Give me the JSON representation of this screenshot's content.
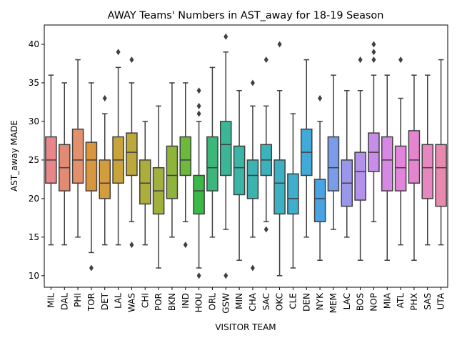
{
  "chart_data": {
    "type": "box",
    "title": "AWAY Teams' Numbers in AST_away for 18-19 Season",
    "xlabel": "VISITOR TEAM",
    "ylabel": "AST_away MADE",
    "ylim": [
      8.5,
      42.5
    ],
    "yticks": [
      10,
      15,
      20,
      25,
      30,
      35,
      40
    ],
    "grid": false,
    "boxes": [
      {
        "team": "MIL",
        "color": "#e8868c",
        "min": 14,
        "q1": 22,
        "median": 25,
        "q3": 28,
        "max": 36,
        "outliers": []
      },
      {
        "team": "DAL",
        "color": "#e38a73",
        "min": 14,
        "q1": 21,
        "median": 24,
        "q3": 27,
        "max": 35,
        "outliers": []
      },
      {
        "team": "PHI",
        "color": "#e3906d",
        "min": 15,
        "q1": 22,
        "median": 25,
        "q3": 29,
        "max": 38,
        "outliers": []
      },
      {
        "team": "TOR",
        "color": "#d9963c",
        "min": 13,
        "q1": 21,
        "median": 25,
        "q3": 27.3,
        "max": 35,
        "outliers": [
          11
        ]
      },
      {
        "team": "DET",
        "color": "#d59c3c",
        "min": 14,
        "q1": 20,
        "median": 22,
        "q3": 25,
        "max": 31,
        "outliers": [
          33
        ]
      },
      {
        "team": "LAL",
        "color": "#c9a33c",
        "min": 14,
        "q1": 22,
        "median": 25,
        "q3": 28,
        "max": 37,
        "outliers": [
          39
        ]
      },
      {
        "team": "WAS",
        "color": "#bca83b",
        "min": 17,
        "q1": 23,
        "median": 26,
        "q3": 28.5,
        "max": 35,
        "outliers": [
          14,
          38
        ]
      },
      {
        "team": "CHI",
        "color": "#adad3b",
        "min": 14,
        "q1": 19.3,
        "median": 22,
        "q3": 25,
        "max": 30,
        "outliers": []
      },
      {
        "team": "POR",
        "color": "#a2b13b",
        "min": 11,
        "q1": 18,
        "median": 21,
        "q3": 24,
        "max": 32,
        "outliers": []
      },
      {
        "team": "BKN",
        "color": "#8eb43b",
        "min": 15,
        "q1": 20,
        "median": 23,
        "q3": 26.8,
        "max": 35,
        "outliers": []
      },
      {
        "team": "IND",
        "color": "#6db93b",
        "min": 17,
        "q1": 23,
        "median": 25,
        "q3": 28,
        "max": 35,
        "outliers": [
          14
        ]
      },
      {
        "team": "HOU",
        "color": "#3bb848",
        "min": 11,
        "q1": 18,
        "median": 21,
        "q3": 23,
        "max": 30,
        "outliers": [
          10,
          31,
          32,
          34
        ]
      },
      {
        "team": "ORL",
        "color": "#3bb77c",
        "min": 15,
        "q1": 21,
        "median": 24,
        "q3": 28,
        "max": 37,
        "outliers": []
      },
      {
        "team": "GSW",
        "color": "#3bb797",
        "min": 16,
        "q1": 23,
        "median": 27,
        "q3": 30,
        "max": 39,
        "outliers": [
          10,
          41
        ]
      },
      {
        "team": "MIN",
        "color": "#3bb5a5",
        "min": 12,
        "q1": 20.5,
        "median": 24,
        "q3": 26.8,
        "max": 34,
        "outliers": []
      },
      {
        "team": "CHA",
        "color": "#3bb4b1",
        "min": 15,
        "q1": 20,
        "median": 23,
        "q3": 25,
        "max": 32,
        "outliers": [
          11,
          35
        ]
      },
      {
        "team": "SAC",
        "color": "#3cb2bb",
        "min": 17,
        "q1": 23,
        "median": 25,
        "q3": 27,
        "max": 32,
        "outliers": [
          16,
          38
        ]
      },
      {
        "team": "OKC",
        "color": "#3db0c4",
        "min": 10,
        "q1": 18,
        "median": 22,
        "q3": 25,
        "max": 34,
        "outliers": [
          40
        ]
      },
      {
        "team": "CLE",
        "color": "#3fadcd",
        "min": 11,
        "q1": 18,
        "median": 20,
        "q3": 23.2,
        "max": 31,
        "outliers": []
      },
      {
        "team": "DEN",
        "color": "#42aad9",
        "min": 15,
        "q1": 23,
        "median": 26,
        "q3": 29,
        "max": 38,
        "outliers": []
      },
      {
        "team": "NYK",
        "color": "#4aa3e3",
        "min": 12,
        "q1": 17,
        "median": 20,
        "q3": 22.5,
        "max": 30,
        "outliers": [
          33
        ]
      },
      {
        "team": "MEM",
        "color": "#7a9ce9",
        "min": 16,
        "q1": 21,
        "median": 24,
        "q3": 28,
        "max": 36,
        "outliers": []
      },
      {
        "team": "LAC",
        "color": "#9a96ea",
        "min": 15,
        "q1": 19,
        "median": 22,
        "q3": 25,
        "max": 34,
        "outliers": []
      },
      {
        "team": "BOS",
        "color": "#b491ea",
        "min": 12,
        "q1": 19.8,
        "median": 23.5,
        "q3": 26,
        "max": 34,
        "outliers": [
          38
        ]
      },
      {
        "team": "NOP",
        "color": "#c88de9",
        "min": 17,
        "q1": 23.5,
        "median": 26,
        "q3": 28.5,
        "max": 36,
        "outliers": [
          38,
          39,
          40
        ]
      },
      {
        "team": "MIA",
        "color": "#d787e4",
        "min": 12,
        "q1": 21,
        "median": 25,
        "q3": 28,
        "max": 36,
        "outliers": []
      },
      {
        "team": "ATL",
        "color": "#e483db",
        "min": 14,
        "q1": 21,
        "median": 24,
        "q3": 26.8,
        "max": 33,
        "outliers": [
          38
        ]
      },
      {
        "team": "PHX",
        "color": "#e585d0",
        "min": 12,
        "q1": 22,
        "median": 25,
        "q3": 28.8,
        "max": 36,
        "outliers": []
      },
      {
        "team": "SAS",
        "color": "#e787c0",
        "min": 14,
        "q1": 20,
        "median": 24,
        "q3": 27,
        "max": 36,
        "outliers": []
      },
      {
        "team": "UTA",
        "color": "#e889b0",
        "min": 14,
        "q1": 19,
        "median": 24,
        "q3": 27,
        "max": 38,
        "outliers": []
      }
    ]
  }
}
